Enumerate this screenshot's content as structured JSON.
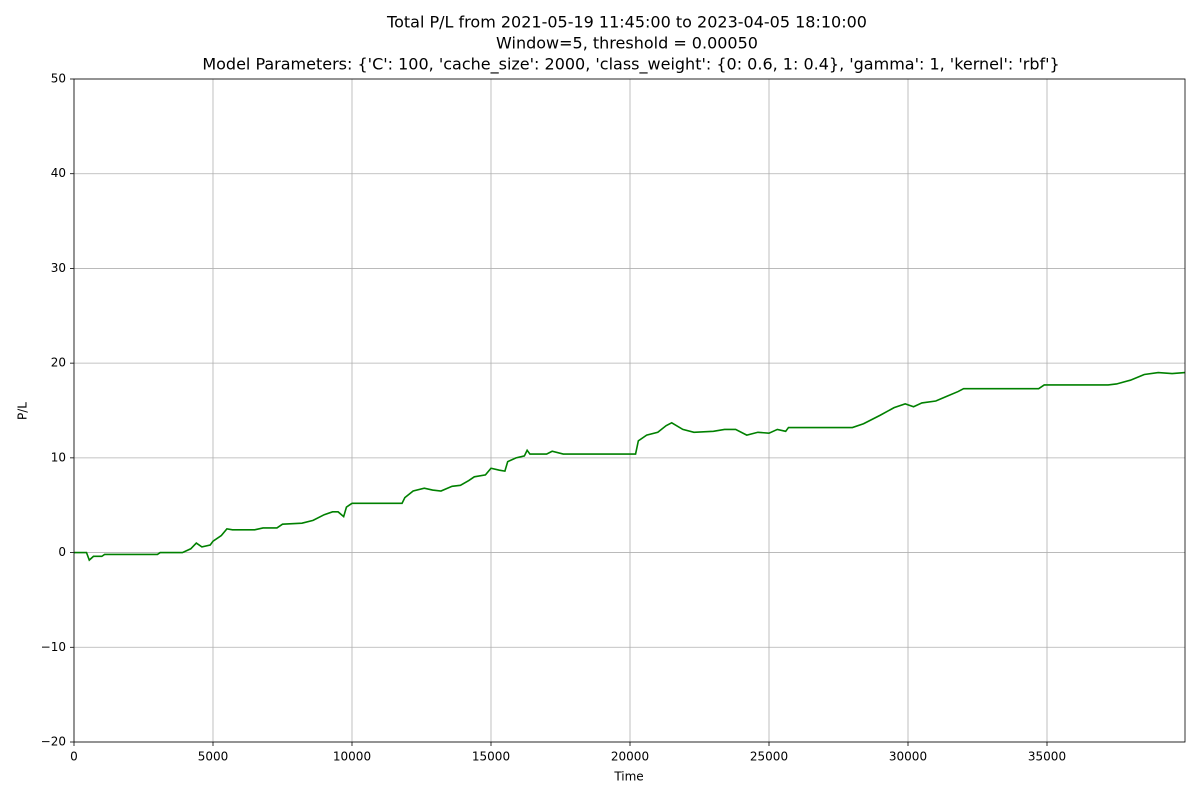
{
  "chart_data": {
    "type": "line",
    "title_lines": [
      "Total P/L from 2021-05-19 11:45:00 to 2023-04-05 18:10:00",
      "Window=5, threshold = 0.00050",
      "Model Parameters: {'C': 100, 'cache_size': 2000, 'class_weight': {0: 0.6, 1: 0.4}, 'gamma': 1, 'kernel': 'rbf'}"
    ],
    "xlabel": "Time",
    "ylabel": "P/L",
    "color": "#008000",
    "grid": true,
    "xlim": [
      0,
      39964
    ],
    "ylim": [
      -20,
      50
    ],
    "xticks": [
      0,
      5000,
      10000,
      15000,
      20000,
      25000,
      30000,
      35000
    ],
    "yticks": [
      {
        "value": -20,
        "label": "−20"
      },
      {
        "value": -10,
        "label": "−10"
      },
      0,
      10,
      20,
      30,
      40,
      50
    ],
    "x": [
      0,
      450,
      550,
      700,
      1000,
      1100,
      3000,
      3100,
      3900,
      4200,
      4400,
      4600,
      4900,
      5000,
      5300,
      5500,
      5700,
      6500,
      6800,
      7300,
      7500,
      8200,
      8600,
      9000,
      9300,
      9500,
      9700,
      9800,
      9900,
      10000,
      11800,
      11900,
      12200,
      12600,
      12900,
      13200,
      13600,
      13900,
      14200,
      14400,
      14800,
      15000,
      15300,
      15500,
      15600,
      15900,
      16200,
      16300,
      16400,
      17000,
      17200,
      17600,
      20200,
      20300,
      20600,
      21000,
      21300,
      21500,
      21900,
      22300,
      23000,
      23400,
      23800,
      24200,
      24600,
      25000,
      25300,
      25600,
      25700,
      28000,
      28400,
      29000,
      29500,
      29900,
      30200,
      30500,
      31000,
      31400,
      31800,
      32000,
      34700,
      34900,
      37200,
      37500,
      38000,
      38500,
      39000,
      39500,
      39964
    ],
    "values": [
      0,
      0,
      -0.8,
      -0.4,
      -0.4,
      -0.2,
      -0.2,
      0,
      0,
      0.4,
      1.0,
      0.6,
      0.8,
      1.2,
      1.8,
      2.5,
      2.4,
      2.4,
      2.6,
      2.6,
      3.0,
      3.1,
      3.4,
      4.0,
      4.3,
      4.3,
      3.8,
      4.8,
      5.0,
      5.2,
      5.2,
      5.8,
      6.5,
      6.8,
      6.6,
      6.5,
      7.0,
      7.1,
      7.6,
      8.0,
      8.2,
      8.9,
      8.7,
      8.6,
      9.6,
      10.0,
      10.2,
      10.8,
      10.4,
      10.4,
      10.7,
      10.4,
      10.4,
      11.8,
      12.4,
      12.7,
      13.4,
      13.7,
      13.0,
      12.7,
      12.8,
      13.0,
      13.0,
      12.4,
      12.7,
      12.6,
      13.0,
      12.8,
      13.2,
      13.2,
      13.6,
      14.5,
      15.3,
      15.7,
      15.4,
      15.8,
      16.0,
      16.5,
      17.0,
      17.3,
      17.3,
      17.7,
      17.7,
      17.8,
      18.2,
      18.8,
      19.0,
      18.9,
      19.0
    ]
  }
}
